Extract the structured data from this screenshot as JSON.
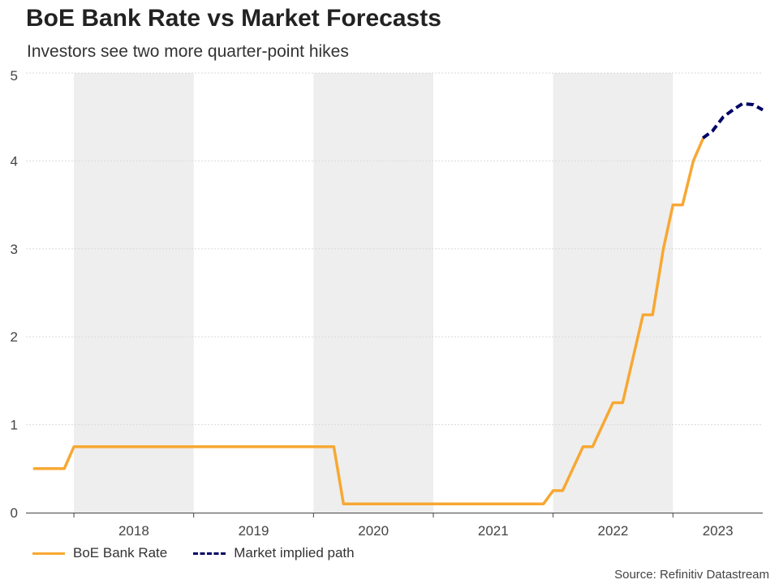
{
  "title": "BoE Bank Rate vs Market Forecasts",
  "subtitle": "Investors see two more quarter-point hikes",
  "source": "Source: Refinitiv Datastream",
  "colors": {
    "bank_rate": "#F7A833",
    "market_path": "#000066",
    "shade": "#EEEEEE",
    "grid": "#D9D9D9"
  },
  "chart_data": {
    "type": "line",
    "title": "BoE Bank Rate vs Market Forecasts",
    "subtitle": "Investors see two more quarter-point hikes",
    "xlabel": "",
    "ylabel": "",
    "xlim": [
      2017.6,
      2023.75
    ],
    "ylim": [
      0,
      5
    ],
    "yticks": [
      0,
      1,
      2,
      3,
      4,
      5
    ],
    "ytick_labels": [
      "0",
      "1",
      "2",
      "3",
      "4",
      "5"
    ],
    "xtick_labels": [
      "2018",
      "2019",
      "2020",
      "2021",
      "2022",
      "2023"
    ],
    "grid": true,
    "legend_position": "bottom-left",
    "shaded_years": [
      "2018",
      "2020",
      "2022"
    ],
    "series": [
      {
        "name": "BoE Bank Rate",
        "style": "solid",
        "x": [
          2017.67,
          2017.92,
          2018.0,
          2018.25,
          2018.5,
          2018.75,
          2019.0,
          2019.5,
          2020.0,
          2020.17,
          2020.25,
          2020.5,
          2021.0,
          2021.5,
          2021.92,
          2022.0,
          2022.08,
          2022.25,
          2022.33,
          2022.5,
          2022.58,
          2022.75,
          2022.83,
          2022.92,
          2023.0,
          2023.08,
          2023.17,
          2023.25
        ],
        "y": [
          0.5,
          0.5,
          0.75,
          0.75,
          0.75,
          0.75,
          0.75,
          0.75,
          0.75,
          0.75,
          0.1,
          0.1,
          0.1,
          0.1,
          0.1,
          0.25,
          0.25,
          0.75,
          0.75,
          1.25,
          1.25,
          2.25,
          2.25,
          3.0,
          3.5,
          3.5,
          4.0,
          4.25
        ]
      },
      {
        "name": "Market implied path",
        "style": "dashed",
        "x": [
          2023.25,
          2023.33,
          2023.42,
          2023.5,
          2023.58,
          2023.67,
          2023.75
        ],
        "y": [
          4.26,
          4.34,
          4.5,
          4.58,
          4.65,
          4.64,
          4.58
        ]
      }
    ]
  }
}
